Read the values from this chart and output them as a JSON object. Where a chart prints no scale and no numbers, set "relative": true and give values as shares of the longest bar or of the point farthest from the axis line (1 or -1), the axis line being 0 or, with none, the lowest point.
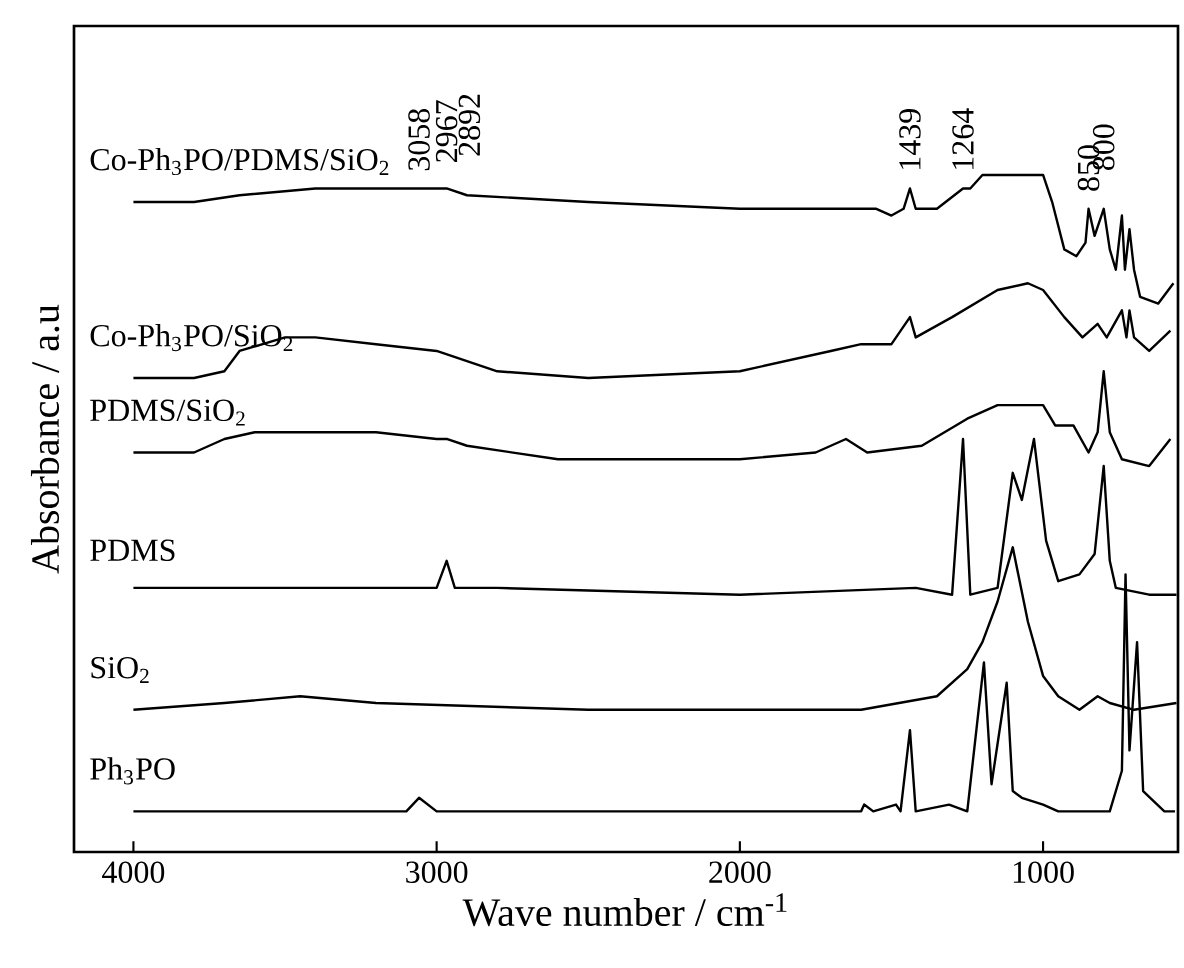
{
  "chart_data": {
    "type": "line",
    "relative": true,
    "xlabel": "Wave number / cm$^{-1}$",
    "ylabel": "Absorbance / a.u",
    "xlim": [
      4196,
      555
    ],
    "xticks": [
      4000,
      3000,
      2000,
      1000
    ],
    "grid": false,
    "marker": "none",
    "line_style": "solid",
    "series": [
      {
        "name": "Co-Ph$_{3}$PO/PDMS/SiO$_{2}$",
        "color": "#000000",
        "x": [
          4000,
          3800,
          3650,
          3400,
          3100,
          3058,
          3000,
          2967,
          2900,
          2500,
          2000,
          1700,
          1550,
          1500,
          1460,
          1439,
          1420,
          1350,
          1264,
          1240,
          1200,
          1100,
          1000,
          970,
          930,
          890,
          860,
          850,
          830,
          800,
          780,
          760,
          740,
          730,
          715,
          700,
          680,
          620,
          570
        ],
        "values": [
          0.96,
          0.96,
          0.97,
          0.98,
          0.98,
          0.98,
          0.98,
          0.98,
          0.97,
          0.96,
          0.95,
          0.95,
          0.95,
          0.94,
          0.95,
          0.98,
          0.95,
          0.95,
          0.98,
          0.98,
          1.0,
          1.0,
          1.0,
          0.96,
          0.89,
          0.88,
          0.9,
          0.95,
          0.91,
          0.95,
          0.89,
          0.86,
          0.94,
          0.86,
          0.92,
          0.86,
          0.82,
          0.81,
          0.84
        ]
      },
      {
        "name": "Co-Ph$_{3}$PO/SiO$_{2}$",
        "color": "#000000",
        "x": [
          4000,
          3800,
          3700,
          3650,
          3500,
          3400,
          3200,
          3000,
          2800,
          2500,
          2000,
          1700,
          1600,
          1500,
          1439,
          1420,
          1300,
          1150,
          1050,
          1000,
          930,
          870,
          820,
          790,
          740,
          725,
          715,
          700,
          650,
          580
        ],
        "values": [
          0.7,
          0.7,
          0.71,
          0.74,
          0.76,
          0.76,
          0.75,
          0.74,
          0.71,
          0.7,
          0.71,
          0.74,
          0.75,
          0.75,
          0.79,
          0.76,
          0.79,
          0.83,
          0.84,
          0.83,
          0.79,
          0.76,
          0.78,
          0.76,
          0.8,
          0.76,
          0.8,
          0.76,
          0.74,
          0.77
        ]
      },
      {
        "name": "PDMS/SiO$_{2}$",
        "color": "#000000",
        "x": [
          4000,
          3800,
          3700,
          3600,
          3200,
          3000,
          2967,
          2900,
          2600,
          2000,
          1750,
          1650,
          1580,
          1400,
          1250,
          1150,
          1000,
          960,
          900,
          850,
          820,
          800,
          780,
          740,
          650,
          580
        ],
        "values": [
          0.59,
          0.59,
          0.61,
          0.62,
          0.62,
          0.61,
          0.61,
          0.6,
          0.58,
          0.58,
          0.59,
          0.61,
          0.59,
          0.6,
          0.64,
          0.66,
          0.66,
          0.63,
          0.63,
          0.59,
          0.62,
          0.71,
          0.62,
          0.58,
          0.57,
          0.61
        ]
      },
      {
        "name": "PDMS",
        "color": "#000000",
        "x": [
          4000,
          3000,
          2967,
          2940,
          2905,
          2800,
          2000,
          1420,
          1300,
          1264,
          1240,
          1150,
          1100,
          1070,
          1030,
          990,
          950,
          880,
          830,
          800,
          780,
          760,
          650,
          560
        ],
        "values": [
          0.39,
          0.39,
          0.43,
          0.39,
          0.39,
          0.39,
          0.38,
          0.39,
          0.38,
          0.61,
          0.38,
          0.39,
          0.56,
          0.52,
          0.61,
          0.46,
          0.4,
          0.41,
          0.44,
          0.57,
          0.43,
          0.39,
          0.38,
          0.38
        ]
      },
      {
        "name": "SiO$_{2}$",
        "color": "#000000",
        "x": [
          4000,
          3700,
          3450,
          3200,
          2500,
          1600,
          1350,
          1250,
          1200,
          1150,
          1100,
          1050,
          1000,
          950,
          880,
          820,
          780,
          700,
          560
        ],
        "values": [
          0.21,
          0.22,
          0.23,
          0.22,
          0.21,
          0.21,
          0.23,
          0.27,
          0.31,
          0.37,
          0.45,
          0.34,
          0.26,
          0.23,
          0.21,
          0.23,
          0.22,
          0.21,
          0.22
        ]
      },
      {
        "name": "Ph$_{3}$PO",
        "color": "#000000",
        "x": [
          4000,
          3200,
          3100,
          3058,
          3000,
          2500,
          2000,
          1600,
          1590,
          1560,
          1485,
          1470,
          1439,
          1420,
          1310,
          1250,
          1195,
          1170,
          1120,
          1100,
          1070,
          1000,
          950,
          780,
          740,
          728,
          715,
          690,
          670,
          600,
          565
        ],
        "values": [
          0.06,
          0.06,
          0.06,
          0.08,
          0.06,
          0.06,
          0.06,
          0.06,
          0.07,
          0.06,
          0.07,
          0.06,
          0.18,
          0.06,
          0.07,
          0.06,
          0.28,
          0.1,
          0.25,
          0.09,
          0.08,
          0.07,
          0.06,
          0.06,
          0.12,
          0.41,
          0.15,
          0.31,
          0.09,
          0.06,
          0.06
        ]
      }
    ],
    "annotations": [
      {
        "text": "3058",
        "x": 3058,
        "y": 0.98
      },
      {
        "text": "2967",
        "x": 2967,
        "y": 0.98
      },
      {
        "text": "2892",
        "x": 2892,
        "y": 0.97
      },
      {
        "text": "1439",
        "x": 1439,
        "y": 0.98
      },
      {
        "text": "1264",
        "x": 1264,
        "y": 0.98
      },
      {
        "text": "850",
        "x": 850,
        "y": 0.95
      },
      {
        "text": "800",
        "x": 800,
        "y": 0.95
      }
    ]
  }
}
